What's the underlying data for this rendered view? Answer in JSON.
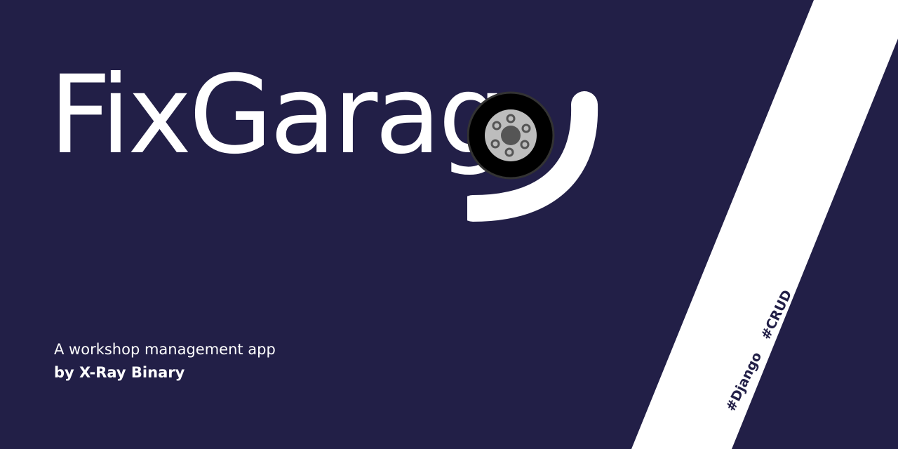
{
  "brand": {
    "name": "FixGarag",
    "background_color": "#221f47",
    "text_color": "#ffffff",
    "logo_icon": "car-wheel-icon"
  },
  "tagline": "A workshop management app",
  "byline": "by X-Ray Binary",
  "tags": [
    "#Django",
    "#CRUD"
  ]
}
